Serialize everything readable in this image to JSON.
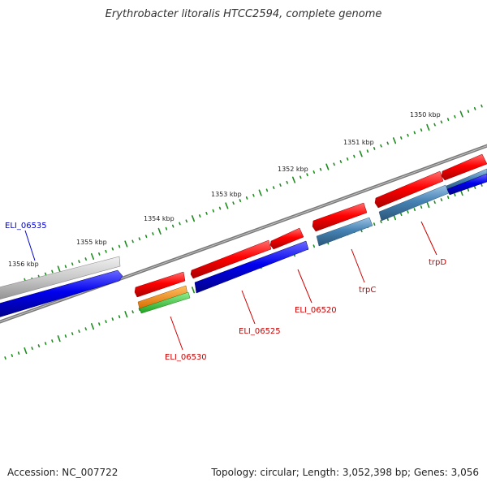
{
  "title": "Erythrobacter litoralis HTCC2594, complete genome",
  "footer": {
    "accession": "Accession: NC_007722",
    "summary": "Topology: circular; Length: 3,052,398 bp; Genes: 3,056"
  },
  "scale": {
    "ticks": [
      "1350 kbp",
      "1351 kbp",
      "1352 kbp",
      "1353 kbp",
      "1354 kbp",
      "1355 kbp",
      "1356 kbp"
    ]
  },
  "genes": [
    {
      "label": "ELI_06535",
      "color": "#0000cc"
    },
    {
      "label": "ELI_06530",
      "color": "#cc0000"
    },
    {
      "label": "ELI_06525",
      "color": "#cc0000"
    },
    {
      "label": "ELI_06520",
      "color": "#cc0000"
    },
    {
      "label": "trpC",
      "color": "#cc0000"
    },
    {
      "label": "trpD",
      "color": "#cc0000"
    }
  ],
  "colors": {
    "backbone": "#888888",
    "ruler": "#1e8c1e",
    "red_feature": "#ff0000",
    "blue_feature": "#0000ee",
    "steel_feature": "#4682b4",
    "grey_feature": "#c0c0c0",
    "orange_feature": "#ff8c00",
    "green_feature": "#32cd32"
  }
}
